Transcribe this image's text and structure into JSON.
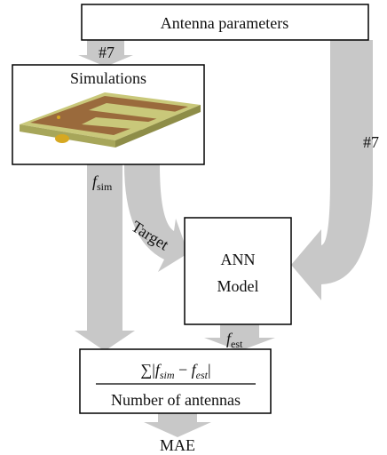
{
  "inputs": {
    "label": "Antenna parameters"
  },
  "edges": [
    {
      "label": "#7"
    },
    {
      "label": "#7"
    },
    {
      "label": "Target"
    }
  ],
  "simulation": {
    "label": "Simulations",
    "output": {
      "main": "f",
      "sub": "sim"
    }
  },
  "model": {
    "label_line1": "ANN",
    "label_line2": "Model",
    "output": {
      "main": "f",
      "sub": "est"
    }
  },
  "metric": {
    "numerator": {
      "sum": "∑|",
      "a": "f",
      "a_sub": "sim",
      "minus": " − ",
      "b": "f",
      "b_sub": "est",
      "close": "|"
    },
    "denominator": "Number of antennas"
  },
  "result": {
    "label": "MAE"
  }
}
